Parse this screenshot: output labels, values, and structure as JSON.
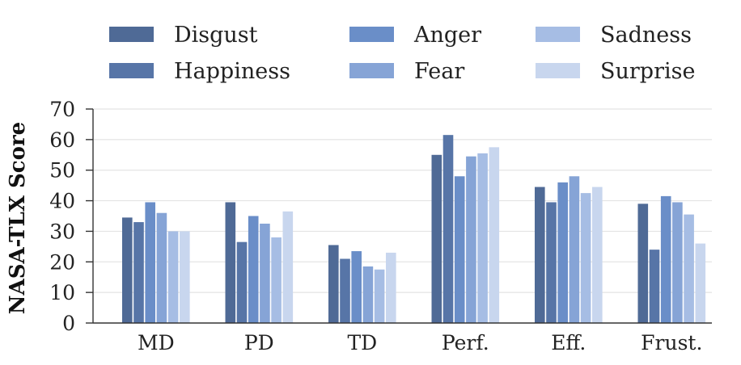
{
  "chart_data": {
    "type": "bar",
    "title": "",
    "xlabel": "",
    "ylabel": "NASA-TLX Score",
    "ylim": [
      0,
      70
    ],
    "yticks": [
      0,
      10,
      20,
      30,
      40,
      50,
      60,
      70
    ],
    "grid": "horizontal",
    "legend_position": "top",
    "categories": [
      "MD",
      "PD",
      "TD",
      "Perf.",
      "Eff.",
      "Frust."
    ],
    "series": [
      {
        "name": "Disgust",
        "color": "#4f6a96",
        "values": [
          34.5,
          39.5,
          25.5,
          55,
          44.5,
          39
        ]
      },
      {
        "name": "Happiness",
        "color": "#5775a7",
        "values": [
          33,
          26.5,
          21,
          61.5,
          39.5,
          24
        ]
      },
      {
        "name": "Anger",
        "color": "#6a8ec8",
        "values": [
          39.5,
          35,
          23.5,
          48,
          46,
          41.5
        ]
      },
      {
        "name": "Fear",
        "color": "#86a4d6",
        "values": [
          36,
          32.5,
          18.5,
          54.5,
          48,
          39.5
        ]
      },
      {
        "name": "Sadness",
        "color": "#a6bde4",
        "values": [
          30,
          28,
          17.5,
          55.5,
          42.5,
          35.5
        ]
      },
      {
        "name": "Surprise",
        "color": "#c8d6ee",
        "values": [
          30,
          36.5,
          23,
          57.5,
          44.5,
          26
        ]
      }
    ]
  }
}
